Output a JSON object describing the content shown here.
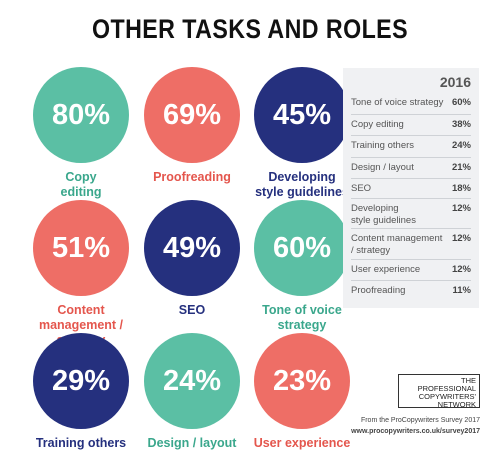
{
  "title": "OTHER TASKS AND ROLES",
  "colors": {
    "teal": "#5bbfa4",
    "coral": "#ee6e66",
    "navy": "#25307e"
  },
  "chart_data": [
    {
      "type": "bar",
      "categories": [
        "Copy editing",
        "Proofreading",
        "Developing style guidelines",
        "Content management / strategy",
        "SEO",
        "Tone of voice strategy",
        "Training others",
        "Design / layout",
        "User experience"
      ],
      "values": [
        80,
        69,
        45,
        51,
        49,
        60,
        29,
        24,
        23
      ],
      "value_labels": [
        "80%",
        "69%",
        "45%",
        "51%",
        "49%",
        "60%",
        "29%",
        "24%",
        "23%"
      ],
      "display_labels": [
        "Copy\nediting",
        "Proofreading",
        "Developing\nstyle guidelines",
        "Content\nmanagement /\nstrategy",
        "SEO",
        "Tone of voice\nstrategy",
        "Training others",
        "Design / layout",
        "User experience"
      ],
      "colors": [
        "teal",
        "coral",
        "navy",
        "coral",
        "navy",
        "teal",
        "navy",
        "teal",
        "coral"
      ],
      "unit": "%"
    },
    {
      "type": "table",
      "header": "2016",
      "rows": [
        {
          "label": "Tone of voice strategy",
          "value": "60%"
        },
        {
          "label": "Copy editing",
          "value": "38%"
        },
        {
          "label": "Training others",
          "value": "24%"
        },
        {
          "label": "Design / layout",
          "value": "21%"
        },
        {
          "label": "SEO",
          "value": "18%"
        },
        {
          "label": "Developing\nstyle guidelines",
          "value": "12%"
        },
        {
          "label": "Content management\n/ strategy",
          "value": "12%"
        },
        {
          "label": "User experience",
          "value": "12%"
        },
        {
          "label": "Proofreading",
          "value": "11%"
        }
      ]
    }
  ],
  "logo_text": "THE\nPROFESSIONAL\nCOPYWRITERS'\nNETWORK",
  "source_line": "From the ProCopywriters Survey 2017",
  "source_url": "www.procopywriters.co.uk/survey2017"
}
